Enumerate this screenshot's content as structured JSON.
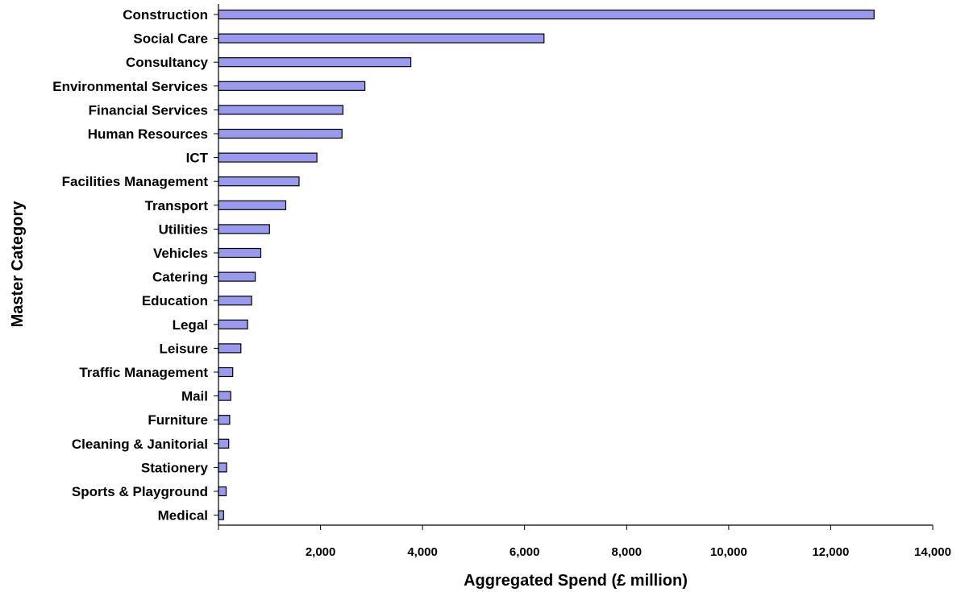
{
  "chart_data": {
    "type": "bar",
    "orientation": "horizontal",
    "title": "",
    "xlabel": "Aggregated Spend (£ million)",
    "ylabel": "Master Category",
    "xlim": [
      0,
      14000
    ],
    "xticks": [
      0,
      2000,
      4000,
      6000,
      8000,
      10000,
      12000,
      14000
    ],
    "xtick_labels": [
      "",
      "2,000",
      "4,000",
      "6,000",
      "8,000",
      "10,000",
      "12,000",
      "14,000"
    ],
    "grid": false,
    "legend": "none",
    "bar_color": "#9999ee",
    "categories": [
      "Construction",
      "Social Care",
      "Consultancy",
      "Environmental Services",
      "Financial Services",
      "Human Resources",
      "ICT",
      "Facilities Management",
      "Transport",
      "Utilities",
      "Vehicles",
      "Catering",
      "Education",
      "Legal",
      "Leisure",
      "Traffic Management",
      "Mail",
      "Furniture",
      "Cleaning & Janitorial",
      "Stationery",
      "Sports & Playground",
      "Medical"
    ],
    "values": [
      12850,
      6380,
      3770,
      2870,
      2440,
      2420,
      1930,
      1580,
      1320,
      1000,
      830,
      720,
      650,
      570,
      440,
      280,
      240,
      220,
      200,
      160,
      150,
      100
    ]
  }
}
